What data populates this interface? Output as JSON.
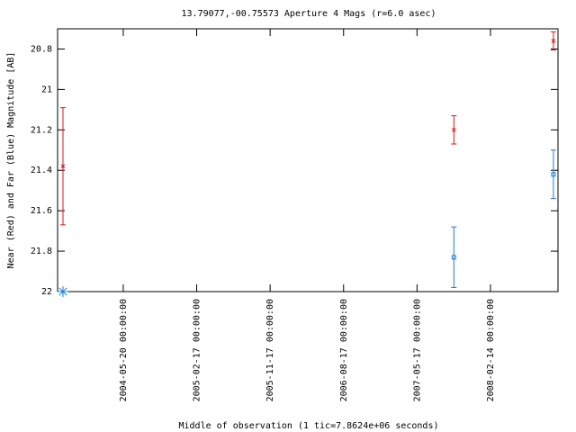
{
  "chart_data": {
    "type": "errorbar",
    "title": "13.79077,-00.75573   Aperture 4 Mags (r=6.0 asec)",
    "x_label": "Middle of observation (1 tic=7.8624e+06 seconds)",
    "y_label": "Near (Red) and Far (Blue) Magnitude [AB]",
    "xlim": [
      "2003-09-19 00:00:00",
      "2008-10-22 00:00:00"
    ],
    "xticks": [
      "2004-05-20 00:00:00",
      "2005-02-17 00:00:00",
      "2005-11-17 00:00:00",
      "2006-08-17 00:00:00",
      "2007-05-17 00:00:00",
      "2008-02-14 00:00:00"
    ],
    "ylim": [
      22,
      20.7
    ],
    "yticks": [
      22,
      21.8,
      21.6,
      21.4,
      21.2,
      21,
      20.8
    ],
    "series": [
      {
        "name": "Near",
        "color": "#d81818",
        "x": [
          "2003-10-09",
          "2007-10-01",
          "2008-10-05"
        ],
        "values": [
          21.38,
          21.2,
          20.76
        ],
        "errors": [
          0.29,
          0.07,
          0.045
        ]
      },
      {
        "name": "Far",
        "color": "#1a7fd8",
        "x": [
          "2003-10-09",
          "2007-10-01",
          "2008-10-05"
        ],
        "values": [
          22,
          21.83,
          21.42
        ],
        "errors": [
          null,
          0.15,
          0.12
        ]
      }
    ]
  }
}
